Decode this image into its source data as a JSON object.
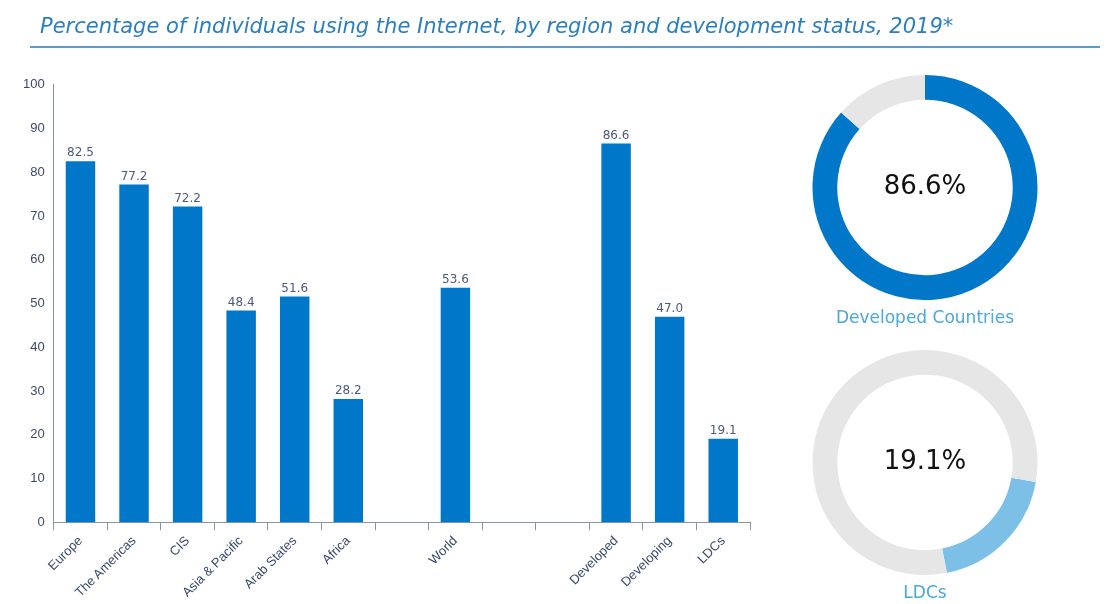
{
  "chart_data": [
    {
      "type": "bar",
      "title": "Percentage of individuals using the Internet, by region and development status, 2019*",
      "categories": [
        "Europe",
        "The Americas",
        "CIS",
        "Asia & Pacific",
        "Arab States",
        "Africa",
        null,
        "World",
        null,
        null,
        "Developed",
        "Developing",
        "LDCs"
      ],
      "values": [
        82.5,
        77.2,
        72.2,
        48.4,
        51.6,
        28.2,
        null,
        53.6,
        null,
        null,
        86.6,
        47.0,
        19.1
      ],
      "value_labels": [
        "82.5",
        "77.2",
        "72.2",
        "48.4",
        "51.6",
        "28.2",
        null,
        "53.6",
        null,
        null,
        "86.6",
        "47.0",
        "19.1"
      ],
      "color": "#0077c8",
      "ylim": [
        0,
        100
      ],
      "yticks": [
        0,
        10,
        20,
        30,
        40,
        50,
        60,
        70,
        80,
        90,
        100
      ],
      "grid": false,
      "legend": false
    },
    {
      "type": "donut",
      "title": "Developed Countries",
      "categories": [
        null,
        null
      ],
      "values": [
        86.6,
        13.4
      ],
      "colors": [
        "#0077c8",
        "#e6e6e6"
      ],
      "annotations": [
        "86.6%"
      ],
      "legend": false
    },
    {
      "type": "donut",
      "title": "LDCs",
      "categories": [
        null,
        null
      ],
      "values": [
        19.1,
        80.9
      ],
      "colors": [
        "#7cc0e8",
        "#e6e6e6"
      ],
      "annotations": [
        "19.1%"
      ],
      "legend": false
    }
  ]
}
